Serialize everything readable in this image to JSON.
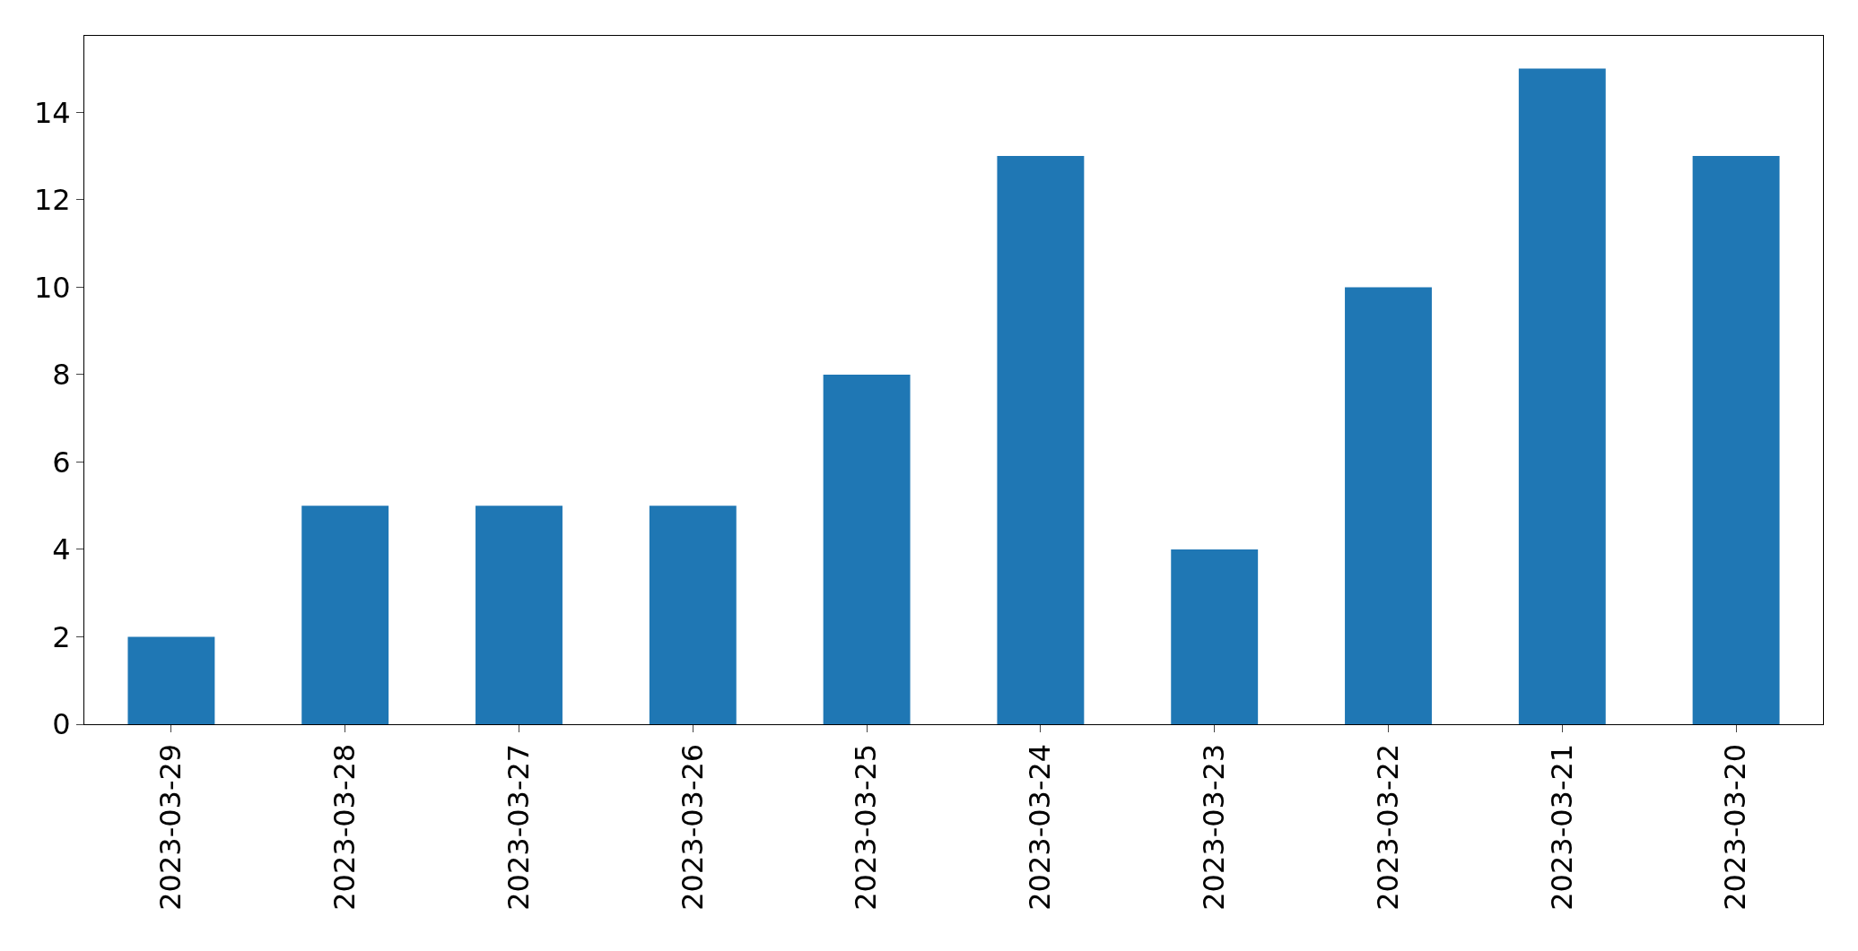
{
  "chart_data": {
    "type": "bar",
    "categories": [
      "2023-03-29",
      "2023-03-28",
      "2023-03-27",
      "2023-03-26",
      "2023-03-25",
      "2023-03-24",
      "2023-03-23",
      "2023-03-22",
      "2023-03-21",
      "2023-03-20"
    ],
    "values": [
      2,
      5,
      5,
      5,
      8,
      13,
      4,
      10,
      15,
      13
    ],
    "color": "#1f77b4",
    "ylim": [
      0,
      15.75
    ],
    "yticks": [
      0,
      2,
      4,
      6,
      8,
      10,
      12,
      14
    ],
    "grid": false
  }
}
